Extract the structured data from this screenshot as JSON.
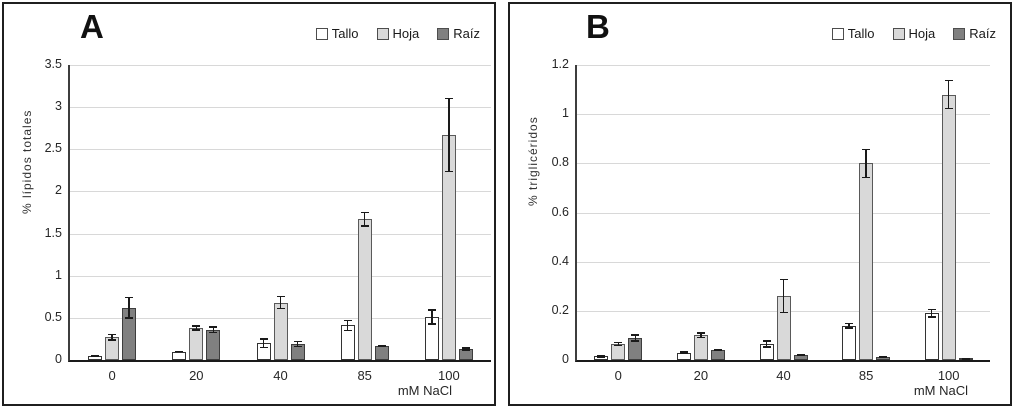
{
  "chart_data": [
    {
      "type": "bar",
      "title": "A",
      "ylabel": "% lípidos totales",
      "xlabel": "mM NaCl",
      "categories": [
        "0",
        "20",
        "40",
        "85",
        "100"
      ],
      "ylim": [
        0,
        3.5
      ],
      "ytick_step": 0.5,
      "grid": true,
      "legend_position": "top-right",
      "series": [
        {
          "name": "Tallo",
          "color": "#ffffff",
          "border": "#333333",
          "values": [
            0.05,
            0.1,
            0.2,
            0.41,
            0.51
          ],
          "errors": [
            0.01,
            0.01,
            0.06,
            0.07,
            0.09
          ]
        },
        {
          "name": "Hoja",
          "color": "#d9d9d9",
          "border": "#595959",
          "values": [
            0.27,
            0.38,
            0.68,
            1.67,
            2.67
          ],
          "errors": [
            0.04,
            0.03,
            0.08,
            0.09,
            0.44
          ]
        },
        {
          "name": "Raíz",
          "color": "#808080",
          "border": "#3d3d3d",
          "values": [
            0.62,
            0.36,
            0.19,
            0.17,
            0.13
          ],
          "errors": [
            0.13,
            0.04,
            0.04,
            0.01,
            0.02
          ]
        }
      ]
    },
    {
      "type": "bar",
      "title": "B",
      "ylabel": "% triglicéridos",
      "xlabel": "mM NaCl",
      "categories": [
        "0",
        "20",
        "40",
        "85",
        "100"
      ],
      "ylim": [
        0,
        1.2
      ],
      "ytick_step": 0.2,
      "grid": true,
      "legend_position": "top-right",
      "series": [
        {
          "name": "Tallo",
          "color": "#ffffff",
          "border": "#333333",
          "values": [
            0.015,
            0.03,
            0.065,
            0.14,
            0.19
          ],
          "errors": [
            0.005,
            0.005,
            0.015,
            0.012,
            0.018
          ]
        },
        {
          "name": "Hoja",
          "color": "#d9d9d9",
          "border": "#595959",
          "values": [
            0.065,
            0.1,
            0.26,
            0.8,
            1.08
          ],
          "errors": [
            0.01,
            0.012,
            0.07,
            0.06,
            0.06
          ]
        },
        {
          "name": "Raíz",
          "color": "#808080",
          "border": "#3d3d3d",
          "values": [
            0.09,
            0.04,
            0.02,
            0.012,
            0.005
          ],
          "errors": [
            0.015,
            0.004,
            0.005,
            0.004,
            0.002
          ]
        }
      ]
    }
  ]
}
